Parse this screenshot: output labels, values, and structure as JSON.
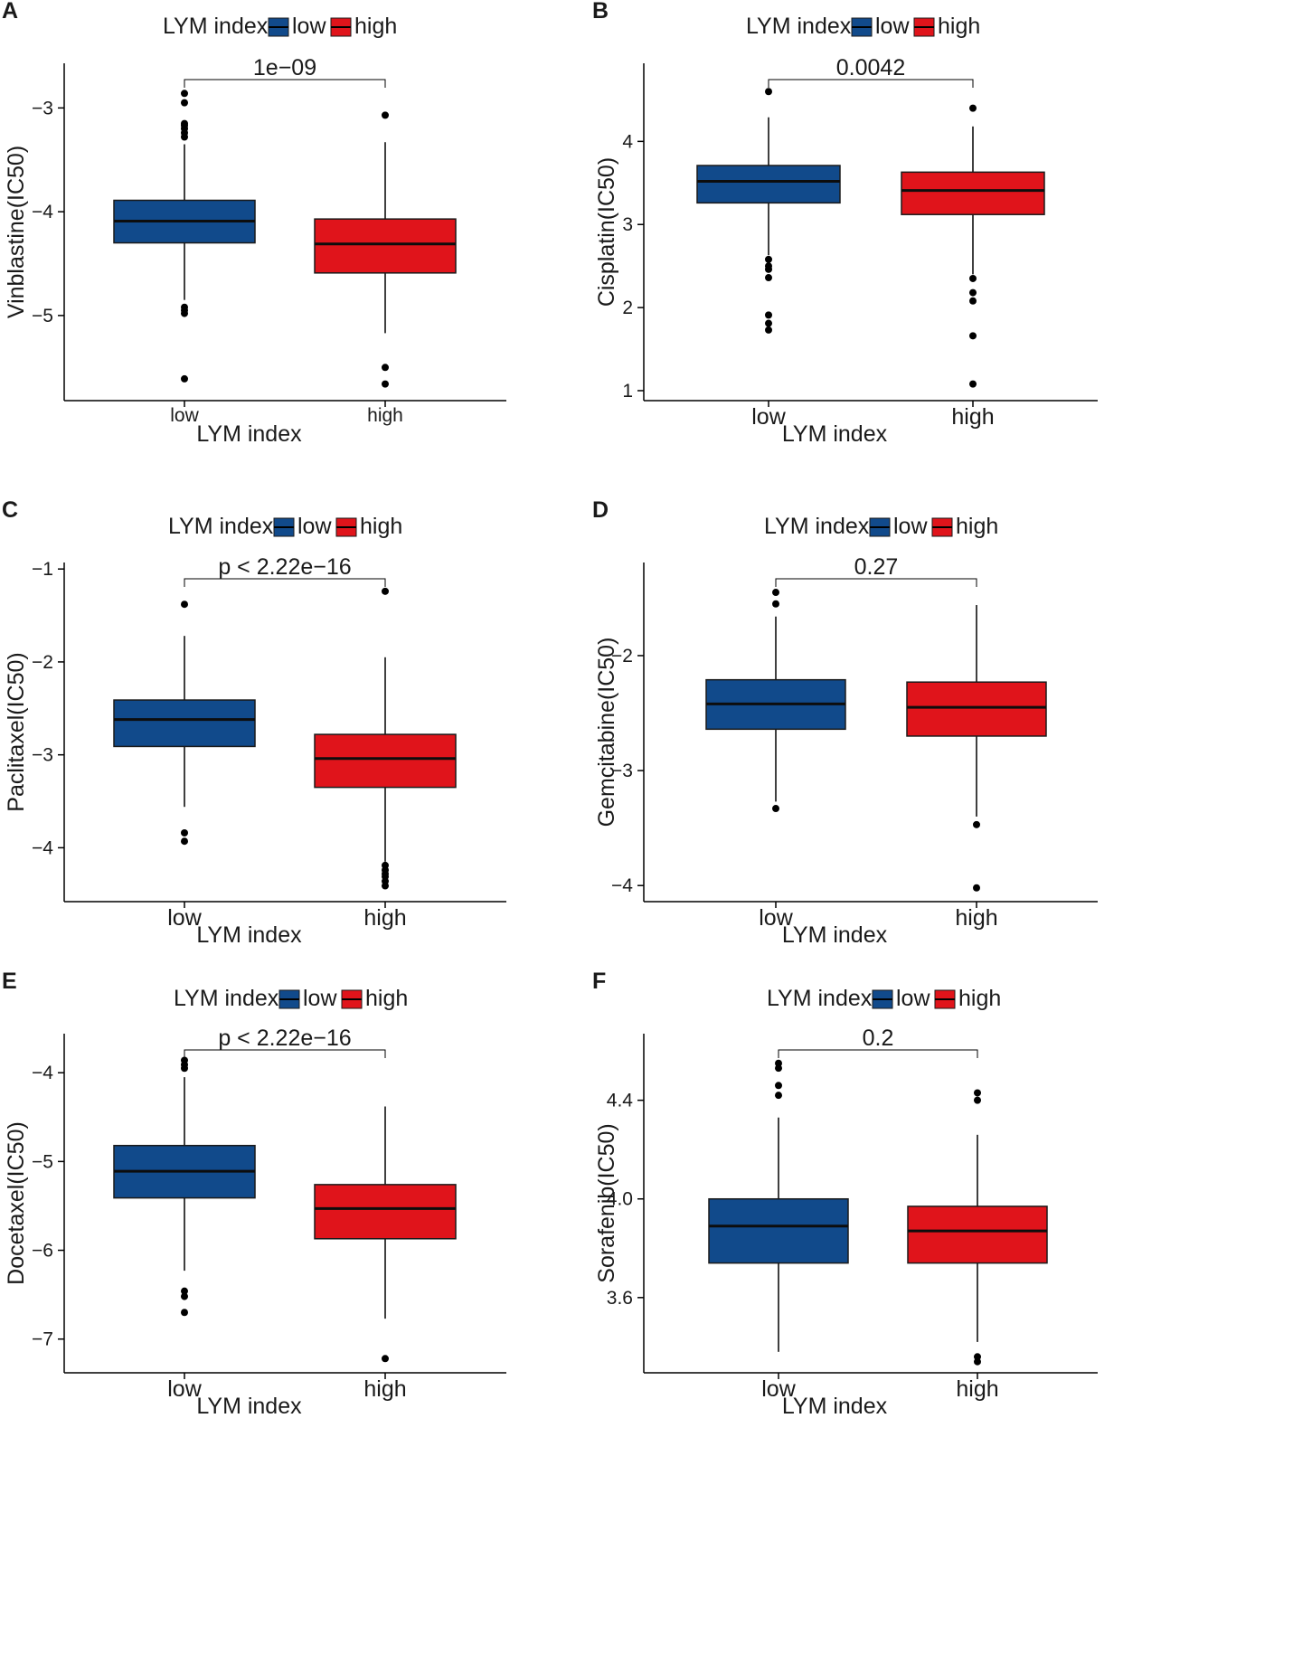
{
  "figure": {
    "fill_colors": {
      "low": "#114a8b",
      "high": "#e0141b"
    },
    "legend_title": "LYM index",
    "legend_low": "low",
    "legend_high": "high"
  },
  "chart_data": [
    {
      "panel": "A",
      "type": "boxplot",
      "xlabel": "LYM index",
      "ylabel": "Vinblastine(IC50)",
      "categories": [
        "low",
        "high"
      ],
      "ylim": [
        -5.82,
        -2.57
      ],
      "yticks": [
        -5,
        -4,
        -3
      ],
      "comparison": "1e−09",
      "boxes": [
        {
          "group": "low",
          "q1": -4.3,
          "median": -4.09,
          "q3": -3.89,
          "whisker_low": -4.85,
          "whisker_high": -3.35,
          "outliers": [
            -2.86,
            -2.95,
            -3.15,
            -3.17,
            -3.2,
            -3.24,
            -3.28,
            -4.92,
            -4.95,
            -4.98,
            -5.61
          ]
        },
        {
          "group": "high",
          "q1": -4.59,
          "median": -4.31,
          "q3": -4.07,
          "whisker_low": -5.17,
          "whisker_high": -3.33,
          "outliers": [
            -3.07,
            -5.5,
            -5.66
          ]
        }
      ]
    },
    {
      "panel": "B",
      "type": "boxplot",
      "xlabel": "LYM index",
      "ylabel": "Cisplatin(IC50)",
      "categories": [
        "low",
        "high"
      ],
      "ylim": [
        0.88,
        4.94
      ],
      "yticks": [
        1,
        2,
        3,
        4
      ],
      "comparison": "0.0042",
      "boxes": [
        {
          "group": "low",
          "q1": 3.26,
          "median": 3.52,
          "q3": 3.71,
          "whisker_low": 2.63,
          "whisker_high": 4.29,
          "outliers": [
            4.6,
            2.58,
            2.5,
            2.46,
            2.36,
            1.91,
            1.81,
            1.73
          ]
        },
        {
          "group": "high",
          "q1": 3.12,
          "median": 3.41,
          "q3": 3.63,
          "whisker_low": 2.4,
          "whisker_high": 4.18,
          "outliers": [
            4.4,
            2.35,
            2.18,
            2.08,
            1.66,
            1.08
          ]
        }
      ]
    },
    {
      "panel": "C",
      "type": "boxplot",
      "xlabel": "LYM index",
      "ylabel": "Paclitaxel(IC50)",
      "categories": [
        "low",
        "high"
      ],
      "ylim": [
        -4.58,
        -0.93
      ],
      "yticks": [
        -4,
        -3,
        -2,
        -1
      ],
      "comparison": "p < 2.22e−16",
      "boxes": [
        {
          "group": "low",
          "q1": -2.91,
          "median": -2.62,
          "q3": -2.41,
          "whisker_low": -3.56,
          "whisker_high": -1.72,
          "outliers": [
            -1.38,
            -3.84,
            -3.93
          ]
        },
        {
          "group": "high",
          "q1": -3.35,
          "median": -3.04,
          "q3": -2.78,
          "whisker_low": -4.15,
          "whisker_high": -1.95,
          "outliers": [
            -1.24,
            -4.19,
            -4.24,
            -4.28,
            -4.31,
            -4.36,
            -4.41
          ]
        }
      ]
    },
    {
      "panel": "D",
      "type": "boxplot",
      "xlabel": "LYM index",
      "ylabel": "Gemcitabine(IC50)",
      "categories": [
        "low",
        "high"
      ],
      "ylim": [
        -4.14,
        -1.19
      ],
      "yticks": [
        -4,
        -3,
        -2
      ],
      "comparison": "0.27",
      "boxes": [
        {
          "group": "low",
          "q1": -2.64,
          "median": -2.42,
          "q3": -2.21,
          "whisker_low": -3.27,
          "whisker_high": -1.66,
          "outliers": [
            -1.45,
            -1.55,
            -3.33
          ]
        },
        {
          "group": "high",
          "q1": -2.7,
          "median": -2.45,
          "q3": -2.23,
          "whisker_low": -3.4,
          "whisker_high": -1.56,
          "outliers": [
            -3.47,
            -4.02
          ]
        }
      ]
    },
    {
      "panel": "E",
      "type": "boxplot",
      "xlabel": "LYM index",
      "ylabel": "Docetaxel(IC50)",
      "categories": [
        "low",
        "high"
      ],
      "ylim": [
        -7.38,
        -3.56
      ],
      "yticks": [
        -7,
        -6,
        -5,
        -4
      ],
      "comparison": "p < 2.22e−16",
      "boxes": [
        {
          "group": "low",
          "q1": -5.41,
          "median": -5.11,
          "q3": -4.82,
          "whisker_low": -6.23,
          "whisker_high": -4.05,
          "outliers": [
            -3.86,
            -3.91,
            -3.95,
            -6.46,
            -6.52,
            -6.7
          ]
        },
        {
          "group": "high",
          "q1": -5.87,
          "median": -5.53,
          "q3": -5.26,
          "whisker_low": -6.77,
          "whisker_high": -4.38,
          "outliers": [
            -7.22
          ]
        }
      ]
    },
    {
      "panel": "F",
      "type": "boxplot",
      "xlabel": "LYM index",
      "ylabel": "Sorafenib(IC50)",
      "categories": [
        "low",
        "high"
      ],
      "ylim": [
        3.295,
        4.67
      ],
      "yticks": [
        3.6,
        4.0,
        4.4
      ],
      "ytick_labels": [
        "3.6",
        "4.0",
        "4.4"
      ],
      "comparison": "0.2",
      "boxes": [
        {
          "group": "low",
          "q1": 3.74,
          "median": 3.89,
          "q3": 4.0,
          "whisker_low": 3.38,
          "whisker_high": 4.33,
          "outliers": [
            4.55,
            4.53,
            4.46,
            4.42
          ]
        },
        {
          "group": "high",
          "q1": 3.74,
          "median": 3.87,
          "q3": 3.97,
          "whisker_low": 3.42,
          "whisker_high": 4.26,
          "outliers": [
            4.43,
            4.4,
            3.36,
            3.34
          ]
        }
      ]
    }
  ]
}
